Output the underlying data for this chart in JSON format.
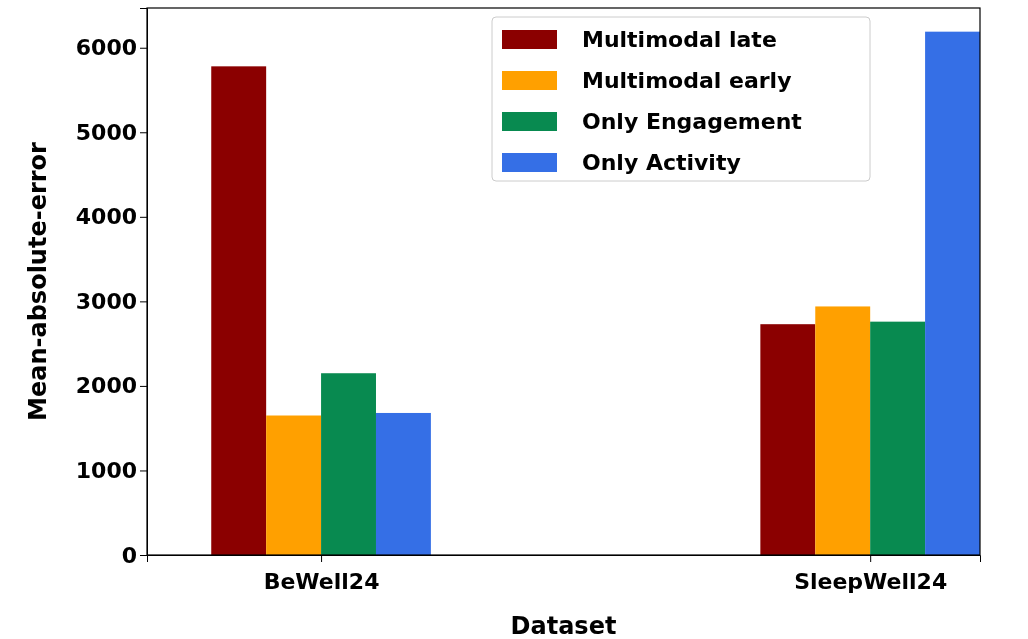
{
  "chart_data": {
    "type": "bar",
    "xlabel": "Dataset",
    "ylabel": "Mean-absolute-error",
    "categories": [
      "BeWell24",
      "SleepWell24"
    ],
    "series": [
      {
        "name": "Multimodal late",
        "color": "#8b0000",
        "values": [
          5780,
          2730
        ]
      },
      {
        "name": "Multimodal early",
        "color": "#ffa000",
        "values": [
          1650,
          2940
        ]
      },
      {
        "name": "Only Engagement",
        "color": "#088a50",
        "values": [
          2150,
          2760
        ]
      },
      {
        "name": "Only Activity",
        "color": "#356fe6",
        "values": [
          1680,
          6190
        ]
      }
    ],
    "ylim": [
      0,
      6470
    ],
    "yticks": [
      0,
      1000,
      2000,
      3000,
      4000,
      5000,
      6000
    ],
    "grid": false,
    "legend": "top right"
  }
}
